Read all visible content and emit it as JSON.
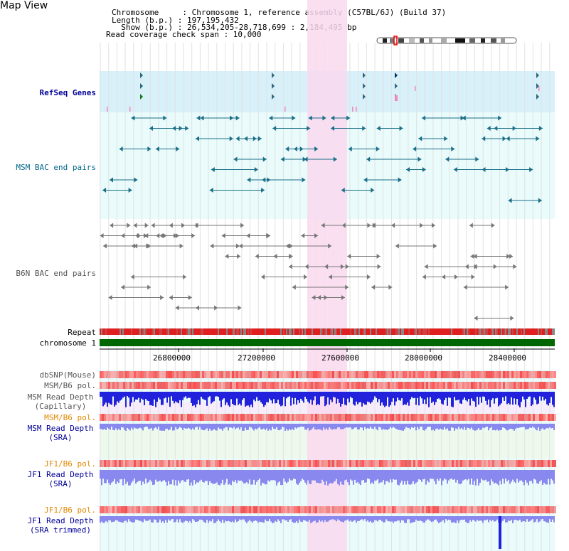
{
  "title": "Map View",
  "info": {
    "chromosome_line": "Chromosome     : Chromosome 1, reference assembly (C57BL/6J) (Build 37)",
    "length_line": "Length (b.p.) : 197,195,432",
    "show_line": "  Show (b.p.) : 26,534,205-28,718,699 : 2,184,495 bp",
    "coverage_line": "Read coverage check span : 10,000"
  },
  "track_labels": {
    "refseq": "RefSeq Genes",
    "msm_bac": "MSM BAC end pairs",
    "b6n_bac": "B6N BAC end pairs",
    "repeat": "Repeat",
    "chromosome": "chromosome 1",
    "dbsnp": "dbSNP(Mouse)",
    "msm_b6_pol_1": "MSM/B6 pol.",
    "msm_depth_cap": "MSM Read Depth\n(Capillary)",
    "msm_b6_pol_2": "MSM/B6 pol.",
    "msm_depth_sra": "MSM Read Depth\n(SRA)",
    "jf1_b6_pol_1": "JF1/B6 pol.",
    "jf1_depth_sra": "JF1 Read Depth\n(SRA)",
    "jf1_b6_pol_2": "JF1/B6 pol.",
    "jf1_depth_trim": "JF1 Read Depth\n(SRA trimmed)"
  },
  "axis_ticks": [
    "26800000",
    "27200000",
    "27600000",
    "28000000",
    "28400000"
  ],
  "colors": {
    "refseq_bg": "#d8f0fa",
    "track_bg": "#e9fbfb",
    "highlight": "#f9d9ef",
    "chromosome_bar": "#006600",
    "repeat": "#e02020",
    "depth_blue": "#2222dd",
    "depth_light": "#8888ee"
  }
}
